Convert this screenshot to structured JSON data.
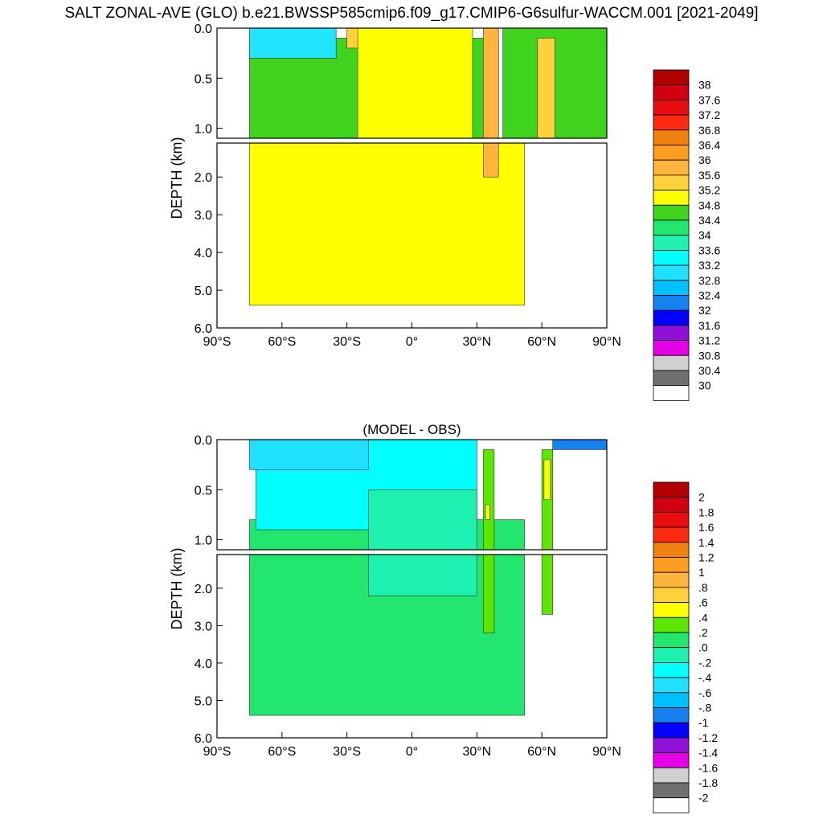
{
  "figure": {
    "title": "SALT ZONAL-AVE (GLO) b.e21.BWSSP585cmip6.f09_g17.CMIP6-G6sulfur-WACCM.001 [2021-2049]"
  },
  "chart_data": [
    {
      "type": "heatmap",
      "title": "",
      "xlabel": "",
      "ylabel": "DEPTH (km)",
      "x_ticks": [
        "90°S",
        "60°S",
        "30°S",
        "0°",
        "30°N",
        "60°N",
        "90°N"
      ],
      "x_tick_values": [
        -90,
        -60,
        -30,
        0,
        30,
        60,
        90
      ],
      "y_ticks_upper": [
        "0.0",
        "0.5",
        "1.0"
      ],
      "y_ticks_upper_values": [
        0,
        0.5,
        1.0
      ],
      "y_ticks_lower": [
        "2.0",
        "3.0",
        "4.0",
        "5.0",
        "6.0"
      ],
      "y_ticks_lower_values": [
        2,
        3,
        4,
        5,
        6
      ],
      "xlim": [
        -90,
        90
      ],
      "ylim_upper": [
        0,
        1.1
      ],
      "ylim_lower": [
        1.1,
        6.0
      ],
      "legend_placement": "right",
      "colorbar_labels": [
        "38",
        "37.6",
        "37.2",
        "36.8",
        "36.4",
        "36",
        "35.6",
        "35.2",
        "34.8",
        "34.4",
        "34",
        "33.6",
        "33.2",
        "32.8",
        "32.4",
        "32",
        "31.6",
        "31.2",
        "30.8",
        "30.4",
        "30"
      ],
      "colorbar_colors": [
        "#b30000",
        "#d00010",
        "#ea0d0d",
        "#ff2a10",
        "#f0820f",
        "#ff9d22",
        "#ffb43c",
        "#ffd23c",
        "#ffff00",
        "#3fd31e",
        "#22e66e",
        "#1ef0b0",
        "#00ffff",
        "#20e0ff",
        "#00c0ff",
        "#1682f0",
        "#0000ff",
        "#8f10d6",
        "#e600e6",
        "#d0d0d0",
        "#707070",
        "#ffffff"
      ],
      "field": {
        "description_values": "zonal-average salinity contour regions (psu)",
        "regions": [
          {
            "value": 34.8,
            "color": "#ffff00",
            "lat_range": [
              -75,
              52
            ],
            "depth_range": [
              1.1,
              5.4
            ]
          },
          {
            "value": 34.6,
            "color": "#3fd31e",
            "lat_range": [
              -75,
              40
            ],
            "depth_range": [
              0.1,
              1.1
            ]
          },
          {
            "value": 33.6,
            "color": "#22e6ff",
            "lat_range": [
              -75,
              -35
            ],
            "depth_range": [
              0,
              0.3
            ]
          },
          {
            "value": 35.2,
            "color": "#ffd23c",
            "lat_range": [
              -30,
              -15
            ],
            "depth_range": [
              0,
              0.2
            ]
          },
          {
            "value": 35.0,
            "color": "#ffff00",
            "lat_range": [
              -25,
              28
            ],
            "depth_range": [
              0,
              1.1
            ]
          },
          {
            "value": 35.6,
            "color": "#ffb43c",
            "lat_range": [
              33,
              40
            ],
            "depth_range": [
              0,
              2.0
            ]
          },
          {
            "value": 34.6,
            "color": "#3fd31e",
            "lat_range": [
              42,
              90
            ],
            "depth_range": [
              0,
              1.1
            ]
          },
          {
            "value": 35.0,
            "color": "#ffd23c",
            "lat_range": [
              58,
              66
            ],
            "depth_range": [
              0.1,
              1.1
            ]
          }
        ]
      }
    },
    {
      "type": "heatmap",
      "title": "(MODEL - OBS)",
      "xlabel": "",
      "ylabel": "DEPTH (km)",
      "x_ticks": [
        "90°S",
        "60°S",
        "30°S",
        "0°",
        "30°N",
        "60°N",
        "90°N"
      ],
      "x_tick_values": [
        -90,
        -60,
        -30,
        0,
        30,
        60,
        90
      ],
      "y_ticks_upper": [
        "0.0",
        "0.5",
        "1.0"
      ],
      "y_ticks_upper_values": [
        0,
        0.5,
        1.0
      ],
      "y_ticks_lower": [
        "2.0",
        "3.0",
        "4.0",
        "5.0",
        "6.0"
      ],
      "y_ticks_lower_values": [
        2,
        3,
        4,
        5,
        6
      ],
      "xlim": [
        -90,
        90
      ],
      "ylim_upper": [
        0,
        1.1
      ],
      "ylim_lower": [
        1.1,
        6.0
      ],
      "legend_placement": "right",
      "colorbar_labels": [
        "2",
        "1.8",
        "1.6",
        "1.4",
        "1.2",
        "1",
        ".8",
        ".6",
        ".4",
        ".2",
        ".0",
        "-.2",
        "-.4",
        "-.6",
        "-.8",
        "-1",
        "-1.2",
        "-1.4",
        "-1.6",
        "-1.8",
        "-2"
      ],
      "colorbar_colors": [
        "#b30000",
        "#d00010",
        "#ea0d0d",
        "#ff2a10",
        "#f0820f",
        "#ff9d22",
        "#ffb43c",
        "#ffd23c",
        "#ffff00",
        "#5ce600",
        "#22e66e",
        "#1ef0b0",
        "#00ffff",
        "#20e0ff",
        "#00c0ff",
        "#1682f0",
        "#0000ff",
        "#8f10d6",
        "#e600e6",
        "#d0d0d0",
        "#707070",
        "#ffffff"
      ],
      "field": {
        "description_values": "model minus observation salinity difference (psu)",
        "regions": [
          {
            "value": 0.1,
            "color": "#22e66e",
            "lat_range": [
              -75,
              52
            ],
            "depth_range": [
              0.8,
              5.4
            ]
          },
          {
            "value": -0.3,
            "color": "#00ffff",
            "lat_range": [
              -72,
              30
            ],
            "depth_range": [
              0,
              0.9
            ]
          },
          {
            "value": -0.5,
            "color": "#20e0ff",
            "lat_range": [
              -75,
              -20
            ],
            "depth_range": [
              0,
              0.3
            ]
          },
          {
            "value": -0.1,
            "color": "#1ef0b0",
            "lat_range": [
              -20,
              30
            ],
            "depth_range": [
              0.5,
              2.2
            ]
          },
          {
            "value": 0.3,
            "color": "#5ce600",
            "lat_range": [
              33,
              38
            ],
            "depth_range": [
              0.1,
              3.2
            ]
          },
          {
            "value": 0.5,
            "color": "#ffff00",
            "lat_range": [
              34,
              36
            ],
            "depth_range": [
              0.65,
              0.8
            ]
          },
          {
            "value": 0.3,
            "color": "#5ce600",
            "lat_range": [
              60,
              65
            ],
            "depth_range": [
              0.1,
              2.7
            ]
          },
          {
            "value": 0.5,
            "color": "#ffff00",
            "lat_range": [
              61,
              64
            ],
            "depth_range": [
              0.2,
              0.6
            ]
          },
          {
            "value": -0.7,
            "color": "#1682f0",
            "lat_range": [
              65,
              90
            ],
            "depth_range": [
              0,
              0.1
            ]
          }
        ]
      }
    }
  ]
}
